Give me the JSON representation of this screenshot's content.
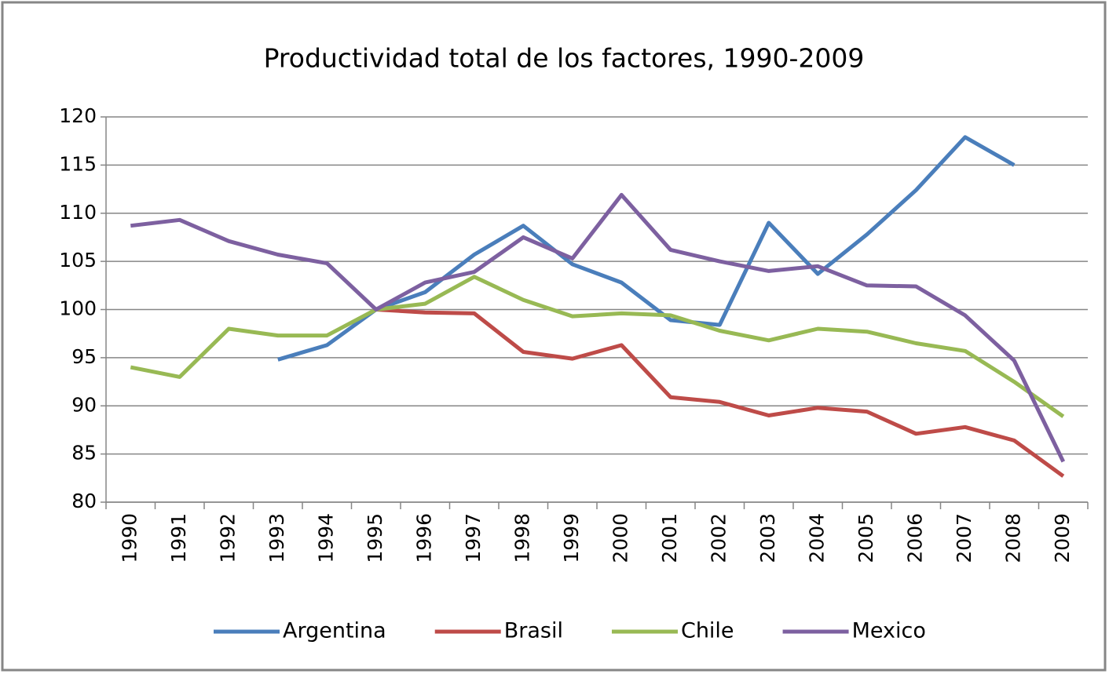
{
  "chart_data": {
    "type": "line",
    "title": "Productividad total de los factores, 1990-2009",
    "categories": [
      "1990",
      "1991",
      "1992",
      "1993",
      "1994",
      "1995",
      "1996",
      "1997",
      "1998",
      "1999",
      "2000",
      "2001",
      "2002",
      "2003",
      "2004",
      "2005",
      "2006",
      "2007",
      "2008",
      "2009"
    ],
    "series": [
      {
        "name": "Argentina",
        "color": "#4a7ebb",
        "values": [
          null,
          null,
          null,
          94.8,
          96.3,
          100,
          101.8,
          105.7,
          108.7,
          104.7,
          102.8,
          98.9,
          98.4,
          109,
          103.7,
          107.8,
          112.4,
          117.9,
          115,
          null
        ]
      },
      {
        "name": "Brasil",
        "color": "#be4b48",
        "values": [
          null,
          null,
          null,
          null,
          null,
          100,
          99.7,
          99.6,
          95.6,
          94.9,
          96.3,
          90.9,
          90.4,
          89,
          89.8,
          89.4,
          87.1,
          87.8,
          86.4,
          82.7
        ]
      },
      {
        "name": "Chile",
        "color": "#98b954",
        "values": [
          94,
          93,
          98,
          97.3,
          97.3,
          100,
          100.6,
          103.4,
          101,
          99.3,
          99.6,
          99.4,
          97.8,
          96.8,
          98,
          97.7,
          96.5,
          95.7,
          92.5,
          88.9
        ]
      },
      {
        "name": "Mexico",
        "color": "#7d60a0",
        "values": [
          108.7,
          109.3,
          107.1,
          105.7,
          104.8,
          100,
          102.8,
          103.9,
          107.5,
          105.3,
          111.9,
          106.2,
          105,
          104,
          104.5,
          102.5,
          102.4,
          99.4,
          94.7,
          84.2
        ]
      }
    ],
    "ylim": [
      80,
      120
    ],
    "yticks": [
      80,
      85,
      90,
      95,
      100,
      105,
      110,
      115,
      120
    ],
    "grid": true,
    "legend": "bottom"
  }
}
